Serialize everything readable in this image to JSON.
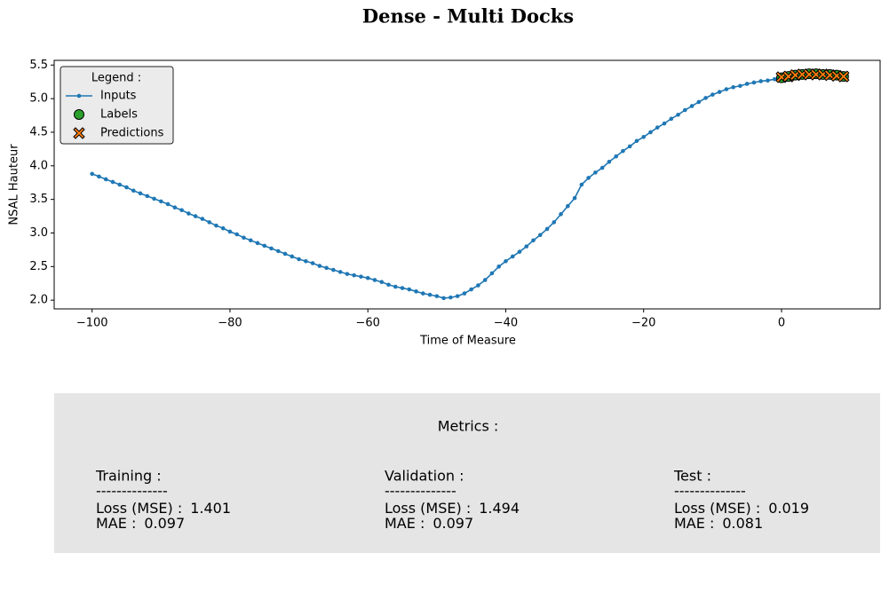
{
  "chart_data": {
    "type": "line",
    "title": "Dense - Multi Docks",
    "xlabel": "Time of Measure",
    "ylabel": "NSAL Hauteur",
    "legend_title": "Legend :",
    "legend": "upper left",
    "xlim": [
      -105.5,
      14.3
    ],
    "ylim": [
      1.87,
      5.57
    ],
    "xticks": [
      {
        "value": -100,
        "label": "−100"
      },
      {
        "value": -80,
        "label": "−80"
      },
      {
        "value": -60,
        "label": "−60"
      },
      {
        "value": -40,
        "label": "−40"
      },
      {
        "value": -20,
        "label": "−20"
      },
      0
    ],
    "yticks": [
      {
        "value": 2.0,
        "label": "2.0"
      },
      {
        "value": 2.5,
        "label": "2.5"
      },
      {
        "value": 3.0,
        "label": "3.0"
      },
      {
        "value": 3.5,
        "label": "3.5"
      },
      {
        "value": 4.0,
        "label": "4.0"
      },
      {
        "value": 4.5,
        "label": "4.5"
      },
      {
        "value": 5.0,
        "label": "5.0"
      },
      {
        "value": 5.5,
        "label": "5.5"
      }
    ],
    "series": [
      {
        "name": "Inputs",
        "color": "#1f77b4",
        "marker": "dot",
        "x": [
          -100,
          -99,
          -98,
          -97,
          -96,
          -95,
          -94,
          -93,
          -92,
          -91,
          -90,
          -89,
          -88,
          -87,
          -86,
          -85,
          -84,
          -83,
          -82,
          -81,
          -80,
          -79,
          -78,
          -77,
          -76,
          -75,
          -74,
          -73,
          -72,
          -71,
          -70,
          -69,
          -68,
          -67,
          -66,
          -65,
          -64,
          -63,
          -62,
          -61,
          -60,
          -59,
          -58,
          -57,
          -56,
          -55,
          -54,
          -53,
          -52,
          -51,
          -50,
          -49,
          -48,
          -47,
          -46,
          -45,
          -44,
          -43,
          -42,
          -41,
          -40,
          -39,
          -38,
          -37,
          -36,
          -35,
          -34,
          -33,
          -32,
          -31,
          -30,
          -29,
          -28,
          -27,
          -26,
          -25,
          -24,
          -23,
          -22,
          -21,
          -20,
          -19,
          -18,
          -17,
          -16,
          -15,
          -14,
          -13,
          -12,
          -11,
          -10,
          -9,
          -8,
          -7,
          -6,
          -5,
          -4,
          -3,
          -2,
          -1
        ],
        "values": [
          3.88,
          3.84,
          3.8,
          3.76,
          3.72,
          3.68,
          3.63,
          3.59,
          3.55,
          3.51,
          3.47,
          3.43,
          3.38,
          3.34,
          3.29,
          3.25,
          3.21,
          3.16,
          3.11,
          3.07,
          3.02,
          2.98,
          2.93,
          2.89,
          2.85,
          2.81,
          2.77,
          2.73,
          2.69,
          2.65,
          2.61,
          2.58,
          2.55,
          2.51,
          2.48,
          2.45,
          2.42,
          2.39,
          2.37,
          2.35,
          2.33,
          2.3,
          2.27,
          2.23,
          2.2,
          2.18,
          2.16,
          2.13,
          2.1,
          2.08,
          2.06,
          2.03,
          2.04,
          2.06,
          2.1,
          2.16,
          2.22,
          2.3,
          2.4,
          2.5,
          2.58,
          2.65,
          2.72,
          2.8,
          2.89,
          2.97,
          3.06,
          3.16,
          3.28,
          3.4,
          3.52,
          3.72,
          3.82,
          3.9,
          3.97,
          4.06,
          4.14,
          4.22,
          4.29,
          4.37,
          4.43,
          4.5,
          4.57,
          4.63,
          4.7,
          4.76,
          4.83,
          4.89,
          4.95,
          5.01,
          5.06,
          5.1,
          5.14,
          5.17,
          5.19,
          5.22,
          5.24,
          5.26,
          5.27,
          5.29
        ]
      },
      {
        "name": "Labels",
        "color": "#2ca02c",
        "marker": "circle",
        "x": [
          0,
          1,
          2,
          3,
          4,
          5,
          6,
          7,
          8,
          9
        ],
        "values": [
          5.31,
          5.33,
          5.35,
          5.36,
          5.37,
          5.37,
          5.36,
          5.36,
          5.35,
          5.33
        ]
      },
      {
        "name": "Predictions",
        "color": "#ff7f0e",
        "marker": "x",
        "x": [
          0,
          1,
          2,
          3,
          4,
          5,
          6,
          7,
          8,
          9
        ],
        "values": [
          5.32,
          5.33,
          5.35,
          5.36,
          5.36,
          5.36,
          5.36,
          5.35,
          5.34,
          5.33
        ]
      }
    ]
  },
  "metrics": {
    "title": "Metrics :",
    "columns": [
      {
        "name": "Training :",
        "separator": "--------------",
        "loss_label": "Loss (MSE) :",
        "loss": 1.401,
        "mae_label": "MAE :",
        "mae": 0.097
      },
      {
        "name": "Validation :",
        "separator": "--------------",
        "loss_label": "Loss (MSE) :",
        "loss": 1.494,
        "mae_label": "MAE :",
        "mae": 0.097
      },
      {
        "name": "Test :",
        "separator": "--------------",
        "loss_label": "Loss (MSE) :",
        "loss": 0.019,
        "mae_label": "MAE :",
        "mae": 0.081
      }
    ]
  }
}
